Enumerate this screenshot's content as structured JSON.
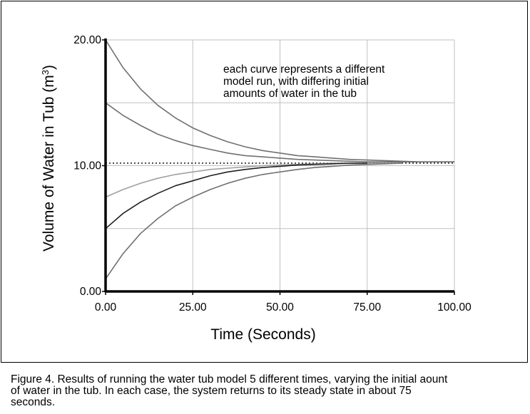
{
  "chart_data": {
    "type": "line",
    "xlabel": "Time (Seconds)",
    "ylabel": "Volume of Water in Tub (m",
    "ylabel_sup": "3",
    "ylabel_close": ")",
    "xlim": [
      0,
      100
    ],
    "ylim": [
      0,
      20
    ],
    "x_ticks": [
      "0.00",
      "25.00",
      "50.00",
      "75.00",
      "100.00"
    ],
    "y_ticks": [
      "0.00",
      "10.00",
      "20.00"
    ],
    "grid": true,
    "annotation": [
      "each curve represents a different",
      "model run, with differing initial",
      "amounts of water in the tub"
    ],
    "reference_line": {
      "y": 10.2,
      "style": "dotted"
    },
    "series": [
      {
        "color": "#707070",
        "x": [
          0,
          5,
          10,
          15,
          20,
          25,
          30,
          35,
          40,
          45,
          50,
          55,
          60,
          65,
          70,
          75,
          80,
          85,
          90,
          95,
          100
        ],
        "values": [
          20.0,
          17.8,
          16.1,
          14.8,
          13.8,
          13.0,
          12.4,
          11.9,
          11.5,
          11.2,
          11.0,
          10.8,
          10.7,
          10.6,
          10.5,
          10.45,
          10.4,
          10.35,
          10.3,
          10.3,
          10.3
        ]
      },
      {
        "color": "#707070",
        "x": [
          0,
          5,
          10,
          15,
          20,
          25,
          30,
          35,
          40,
          45,
          50,
          55,
          60,
          65,
          70,
          75,
          80,
          85,
          90,
          95,
          100
        ],
        "values": [
          15.0,
          14.0,
          13.2,
          12.5,
          12.0,
          11.6,
          11.3,
          11.0,
          10.8,
          10.7,
          10.6,
          10.5,
          10.45,
          10.4,
          10.35,
          10.3,
          10.3,
          10.3,
          10.3,
          10.3,
          10.3
        ]
      },
      {
        "color": "#a0a0a0",
        "x": [
          0,
          5,
          10,
          15,
          20,
          25,
          30,
          35,
          40,
          45,
          50,
          55,
          60,
          65,
          70,
          75,
          80,
          85
        ],
        "values": [
          7.5,
          8.1,
          8.6,
          9.0,
          9.3,
          9.5,
          9.7,
          9.8,
          9.9,
          10.0,
          10.05,
          10.1,
          10.15,
          10.2,
          10.2,
          10.2,
          10.2,
          10.2
        ]
      },
      {
        "color": "#202020",
        "x": [
          0,
          5,
          10,
          15,
          20,
          25,
          30,
          35,
          40,
          45,
          50,
          55,
          60,
          65,
          70,
          75
        ],
        "values": [
          5.0,
          6.2,
          7.1,
          7.8,
          8.4,
          8.8,
          9.2,
          9.5,
          9.7,
          9.85,
          9.95,
          10.05,
          10.1,
          10.15,
          10.2,
          10.2
        ]
      },
      {
        "color": "#707070",
        "x": [
          0,
          5,
          10,
          15,
          20,
          25,
          30,
          35,
          40,
          45,
          50,
          55,
          60,
          65,
          70,
          75,
          80,
          85
        ],
        "values": [
          1.0,
          3.0,
          4.6,
          5.8,
          6.8,
          7.5,
          8.1,
          8.6,
          9.0,
          9.3,
          9.5,
          9.7,
          9.85,
          9.95,
          10.05,
          10.1,
          10.15,
          10.2
        ]
      }
    ]
  },
  "caption": {
    "line1": "Figure 4. Results of running the water tub model 5 different times, varying the initial aount",
    "line2": "of water in the tub.  In each case, the system returns to its steady state in about 75",
    "line3": "seconds."
  }
}
